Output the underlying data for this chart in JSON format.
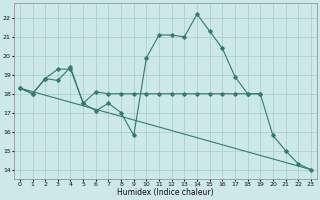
{
  "title": "",
  "xlabel": "Humidex (Indice chaleur)",
  "ylabel": "",
  "xlim": [
    -0.5,
    23.5
  ],
  "ylim": [
    13.5,
    22.8
  ],
  "xticks": [
    0,
    1,
    2,
    3,
    4,
    5,
    6,
    7,
    8,
    9,
    10,
    11,
    12,
    13,
    14,
    15,
    16,
    17,
    18,
    19,
    20,
    21,
    22,
    23
  ],
  "yticks": [
    14,
    15,
    16,
    17,
    18,
    19,
    20,
    21,
    22
  ],
  "bg_color": "#cde8e8",
  "grid_color": "#aacccc",
  "line_color": "#2e7d6e",
  "lines": [
    {
      "x": [
        0,
        1,
        2,
        3,
        4,
        5,
        6,
        7,
        8,
        9,
        10,
        11,
        12,
        13,
        14,
        15,
        16,
        17,
        18,
        19,
        20,
        21,
        22,
        23
      ],
      "y": [
        18.3,
        18.0,
        18.8,
        18.7,
        19.4,
        17.5,
        17.1,
        17.5,
        17.0,
        15.8,
        19.9,
        21.1,
        21.1,
        21.0,
        22.2,
        21.3,
        20.4,
        18.9,
        18.0,
        18.0,
        15.8,
        15.0,
        14.3,
        14.0
      ],
      "marker": true
    },
    {
      "x": [
        0,
        1,
        2,
        3,
        4,
        5,
        6,
        7,
        8,
        9,
        10,
        11,
        12,
        13,
        14,
        15,
        16,
        17,
        18,
        19
      ],
      "y": [
        18.3,
        18.0,
        18.8,
        19.3,
        19.3,
        17.5,
        18.1,
        18.0,
        18.0,
        18.0,
        18.0,
        18.0,
        18.0,
        18.0,
        18.0,
        18.0,
        18.0,
        18.0,
        18.0,
        18.0
      ],
      "marker": true
    },
    {
      "x": [
        0,
        23
      ],
      "y": [
        18.3,
        14.0
      ],
      "marker": false
    }
  ]
}
